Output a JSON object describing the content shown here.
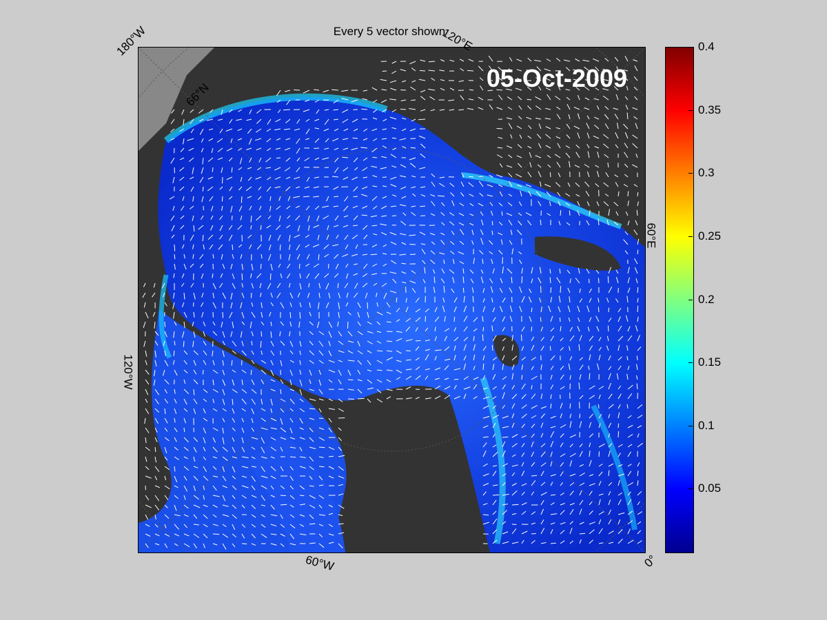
{
  "title": "Every 5 vector shown",
  "date": "05-Oct-2009",
  "map_labels": {
    "lon_180w": "180°W",
    "lon_120e": "120°E",
    "lon_60e": "60°E",
    "lon_120w": "120°W",
    "lon_60w": "60°W",
    "lon_0": "0°",
    "lat_66n": "66°N"
  },
  "colorbar": {
    "min": 0,
    "max": 0.4,
    "ticks": [
      "0.4",
      "0.35",
      "0.3",
      "0.25",
      "0.2",
      "0.15",
      "0.1",
      "0.05"
    ],
    "tick_values": [
      0.4,
      0.35,
      0.3,
      0.25,
      0.2,
      0.15,
      0.1,
      0.05
    ],
    "colormap": "jet"
  },
  "colors": {
    "background": "#cccccc",
    "land": "#333333",
    "land_highlight": "#888888",
    "ocean_low": "#0a2acc",
    "ocean_mid": "#1c5cff",
    "vectors": "#ffffff"
  }
}
